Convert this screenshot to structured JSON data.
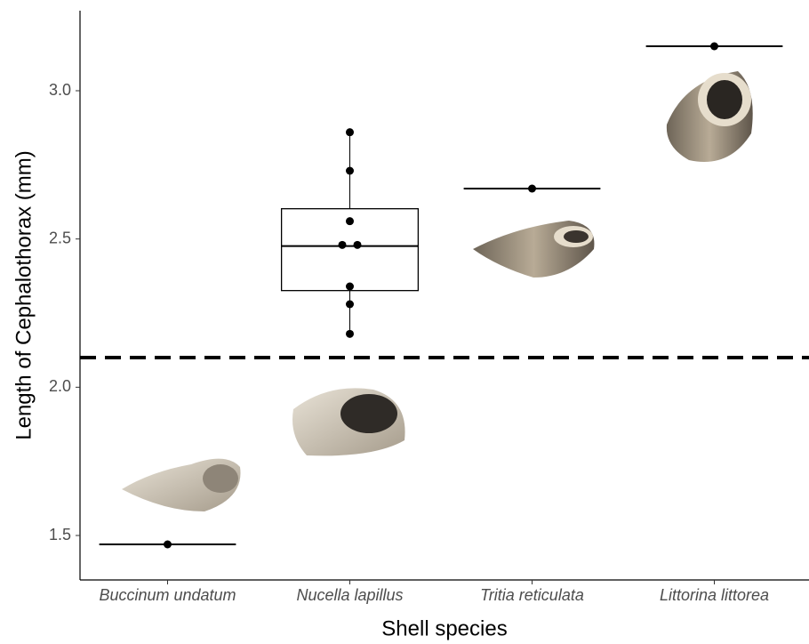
{
  "chart_data": {
    "type": "box",
    "x_label": "Shell species",
    "y_label": "Length of Cephalothorax (mm)",
    "categories": [
      "Buccinum undatum",
      "Nucella lapillus",
      "Tritia reticulata",
      "Littorina littorea"
    ],
    "boxes": [
      {
        "min": 1.47,
        "q1": 1.47,
        "median": 1.47,
        "q3": 1.47,
        "max": 1.47
      },
      {
        "min": 2.18,
        "q1": 2.326,
        "median": 2.476,
        "q3": 2.602,
        "max": 2.86
      },
      {
        "min": 2.67,
        "q1": 2.67,
        "median": 2.67,
        "q3": 2.67,
        "max": 2.67
      },
      {
        "min": 3.15,
        "q1": 3.15,
        "median": 3.15,
        "q3": 3.15,
        "max": 3.15
      }
    ],
    "points": [
      [
        1.47
      ],
      [
        2.86,
        2.73,
        2.56,
        2.48,
        2.48,
        2.34,
        2.28,
        2.18
      ],
      [
        2.67
      ],
      [
        3.15
      ]
    ],
    "reference_line": 2.1,
    "color": "#000000",
    "ylim": [
      1.35,
      3.27
    ],
    "yticks": [
      1.5,
      {
        "value": 2,
        "label": "2.0"
      },
      2.5,
      {
        "value": 3,
        "label": "3.0"
      }
    ],
    "grid": false
  }
}
